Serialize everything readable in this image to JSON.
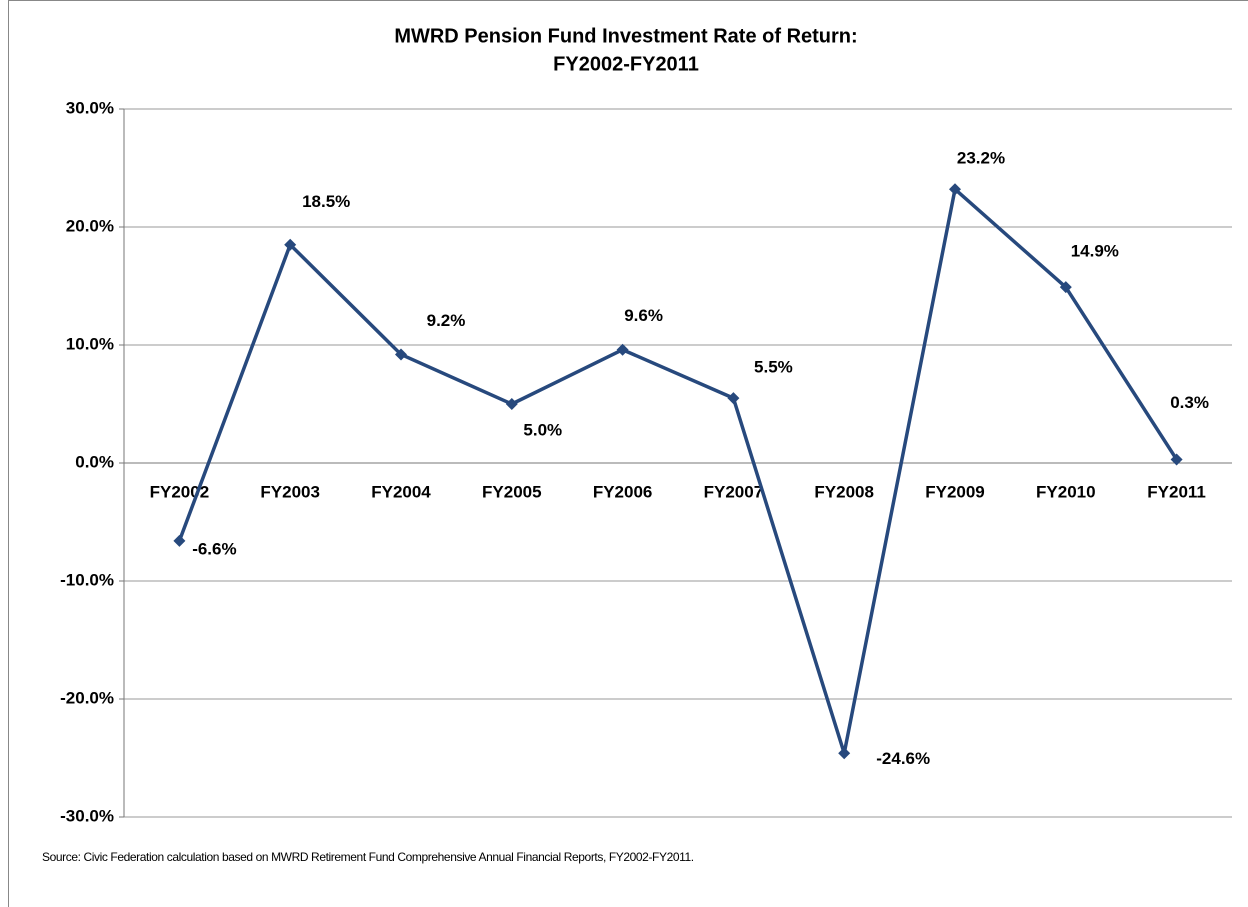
{
  "chart_data": {
    "type": "line",
    "title": [
      "MWRD Pension Fund Investment Rate of Return:",
      "FY2002-FY2011"
    ],
    "note": "Source: Civic Federation calculation based on MWRD Retirement Fund Comprehensive Annual Financial Reports, FY2002-FY2011.",
    "categories": [
      "FY2002",
      "FY2003",
      "FY2004",
      "FY2005",
      "FY2006",
      "FY2007",
      "FY2008",
      "FY2009",
      "FY2010",
      "FY2011"
    ],
    "series": [
      {
        "color": "#27497d",
        "values": [
          -6.6,
          18.5,
          9.2,
          5.0,
          9.6,
          5.5,
          -24.6,
          23.2,
          14.9,
          0.3
        ],
        "value_labels": [
          "-6.6%",
          "18.5%",
          "9.2%",
          "5.0%",
          "9.6%",
          "5.5%",
          "-24.6%",
          "23.2%",
          "14.9%",
          "0.3%"
        ]
      }
    ],
    "ylim": [
      -30,
      30
    ],
    "yticks": [
      {
        "value": -30,
        "label": "-30.0%"
      },
      {
        "value": -20,
        "label": "-20.0%"
      },
      {
        "value": -10,
        "label": "-10.0%"
      },
      {
        "value": 0,
        "label": "0.0%"
      },
      {
        "value": 10,
        "label": "10.0%"
      },
      {
        "value": 20,
        "label": "20.0%"
      },
      {
        "value": 30,
        "label": "30.0%"
      }
    ],
    "grid": true
  }
}
